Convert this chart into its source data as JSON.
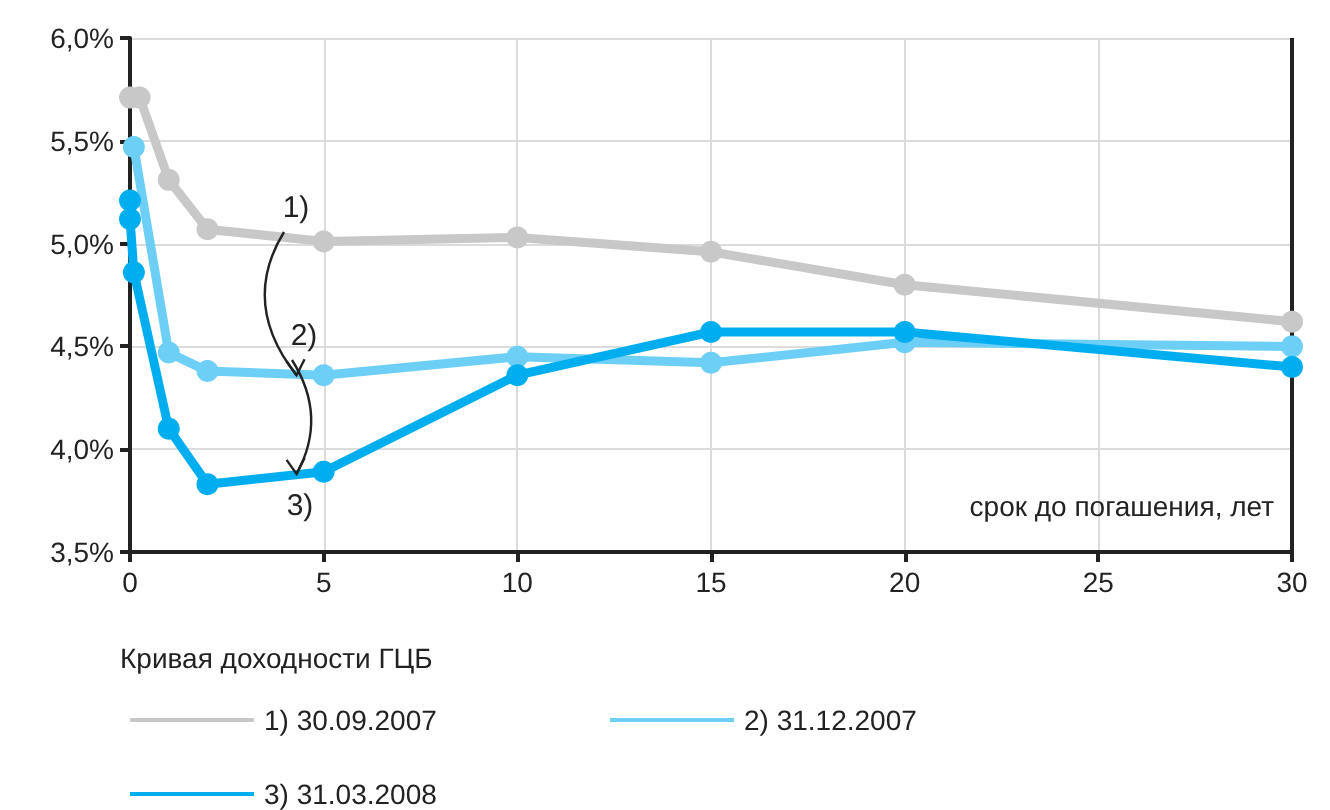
{
  "chart_data": {
    "type": "line",
    "xlabel": "срок до погашения, лет",
    "legend_title": "Кривая доходности ГЦБ",
    "series": [
      {
        "name": "1) 30.09.2007",
        "color": "#c8c8c8",
        "x": [
          0,
          0.25,
          1,
          2,
          5,
          10,
          15,
          20,
          30
        ],
        "values": [
          5.71,
          5.71,
          5.31,
          5.07,
          5.01,
          5.03,
          4.96,
          4.8,
          4.62
        ]
      },
      {
        "name": "2) 31.12.2007",
        "color": "#6dcff6",
        "x": [
          0.1,
          1,
          2,
          5,
          10,
          15,
          20,
          30
        ],
        "values": [
          5.47,
          4.47,
          4.38,
          4.36,
          4.45,
          4.42,
          4.52,
          4.5
        ]
      },
      {
        "name": "3) 31.03.2008",
        "color": "#00aeef",
        "x": [
          0,
          0,
          0.1,
          1,
          2,
          5,
          10,
          15,
          20,
          30
        ],
        "values": [
          5.21,
          5.12,
          4.86,
          4.1,
          3.83,
          3.89,
          4.36,
          4.57,
          4.57,
          4.4
        ]
      }
    ],
    "xlim": [
      0,
      30
    ],
    "xticks": [
      0,
      5,
      10,
      15,
      20,
      25,
      30
    ],
    "ylim": [
      3.5,
      6
    ],
    "yticks": [
      {
        "value": 3.5,
        "label": "3,5%"
      },
      {
        "value": 4,
        "label": "4,0%"
      },
      {
        "value": 4.5,
        "label": "4,5%"
      },
      {
        "value": 5,
        "label": "5,0%"
      },
      {
        "value": 5.5,
        "label": "5,5%"
      },
      {
        "value": 6,
        "label": "6,0%"
      }
    ],
    "annotations": [
      {
        "text": "1)",
        "x": 4.3,
        "y": 4.36
      },
      {
        "text": "2)",
        "x": 4.3,
        "y": 3.88
      },
      "3)"
    ],
    "grid": true,
    "legend": "bottom",
    "marker": "circle",
    "line_style": "solid"
  }
}
